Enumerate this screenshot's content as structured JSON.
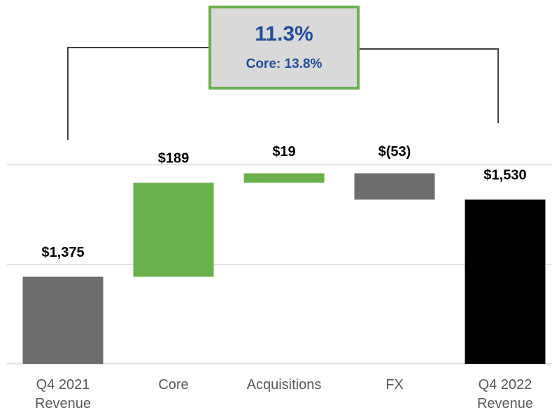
{
  "chart_data": {
    "type": "waterfall",
    "categories": [
      "Q4 2021 Revenue",
      "Core",
      "Acquisitions",
      "FX",
      "Q4 2022 Revenue"
    ],
    "values": [
      1375,
      189,
      19,
      -53,
      1530
    ],
    "value_labels": [
      "$1,375",
      "$189",
      "$19",
      "$(53)",
      "$1,530"
    ],
    "measures": [
      "total",
      "relative",
      "relative",
      "relative",
      "total"
    ],
    "colors": [
      "#6d6d6d",
      "#6ab04c",
      "#6ab04c",
      "#6d6d6d",
      "#000000"
    ],
    "ylim": [
      1200,
      1650
    ],
    "yticks": [
      1200,
      1400,
      1600
    ],
    "grid": true,
    "annotation": {
      "title": "11.3%",
      "subtitle": "Core: 13.8%"
    }
  }
}
